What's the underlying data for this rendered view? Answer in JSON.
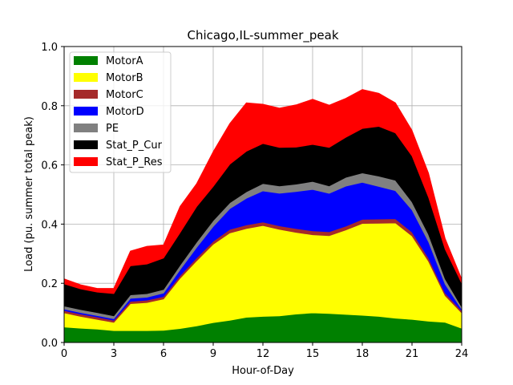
{
  "chart_data": {
    "type": "area",
    "stacked": true,
    "title": "Chicago,IL-summer_peak",
    "xlabel": "Hour-of-Day",
    "ylabel": "Load (pu. summer total peak)",
    "xlim": [
      0,
      24
    ],
    "ylim": [
      0,
      1.0
    ],
    "xticks": [
      0,
      3,
      6,
      9,
      12,
      15,
      18,
      21,
      24
    ],
    "yticks": [
      0.0,
      0.2,
      0.4,
      0.6,
      0.8,
      1.0
    ],
    "xtick_labels": [
      "0",
      "3",
      "6",
      "9",
      "12",
      "15",
      "18",
      "21",
      "24"
    ],
    "ytick_labels": [
      "0.0",
      "0.2",
      "0.4",
      "0.6",
      "0.8",
      "1.0"
    ],
    "grid": true,
    "legend_position": "upper-left",
    "x": [
      0,
      1,
      2,
      3,
      4,
      5,
      6,
      7,
      8,
      9,
      10,
      11,
      12,
      13,
      14,
      15,
      16,
      17,
      18,
      19,
      20,
      21,
      22,
      23,
      24
    ],
    "series": [
      {
        "name": "MotorA",
        "color": "#008000",
        "values": [
          0.052,
          0.048,
          0.045,
          0.04,
          0.04,
          0.04,
          0.041,
          0.047,
          0.056,
          0.067,
          0.075,
          0.085,
          0.088,
          0.09,
          0.096,
          0.1,
          0.098,
          0.095,
          0.092,
          0.088,
          0.082,
          0.078,
          0.072,
          0.068,
          0.048
        ]
      },
      {
        "name": "MotorB",
        "color": "#ffff00",
        "values": [
          0.048,
          0.04,
          0.033,
          0.028,
          0.091,
          0.095,
          0.106,
          0.17,
          0.22,
          0.265,
          0.295,
          0.3,
          0.307,
          0.292,
          0.276,
          0.264,
          0.263,
          0.285,
          0.31,
          0.315,
          0.322,
          0.282,
          0.202,
          0.09,
          0.052
        ]
      },
      {
        "name": "MotorC",
        "color": "#a52a2a",
        "values": [
          0.008,
          0.008,
          0.008,
          0.007,
          0.008,
          0.008,
          0.008,
          0.009,
          0.01,
          0.01,
          0.012,
          0.012,
          0.012,
          0.012,
          0.013,
          0.013,
          0.013,
          0.013,
          0.014,
          0.014,
          0.014,
          0.013,
          0.011,
          0.009,
          0.007
        ]
      },
      {
        "name": "MotorD",
        "color": "#0000ff",
        "values": [
          0.005,
          0.005,
          0.005,
          0.005,
          0.01,
          0.01,
          0.012,
          0.02,
          0.035,
          0.05,
          0.07,
          0.09,
          0.105,
          0.11,
          0.125,
          0.14,
          0.13,
          0.135,
          0.125,
          0.11,
          0.095,
          0.075,
          0.055,
          0.03,
          0.005
        ]
      },
      {
        "name": "PE",
        "color": "#808080",
        "values": [
          0.01,
          0.01,
          0.01,
          0.01,
          0.012,
          0.012,
          0.012,
          0.015,
          0.018,
          0.02,
          0.02,
          0.022,
          0.025,
          0.025,
          0.025,
          0.027,
          0.025,
          0.03,
          0.032,
          0.035,
          0.035,
          0.027,
          0.025,
          0.018,
          0.008
        ]
      },
      {
        "name": "Stat_P_Cur",
        "color": "#000000",
        "values": [
          0.075,
          0.07,
          0.069,
          0.075,
          0.098,
          0.1,
          0.106,
          0.11,
          0.12,
          0.115,
          0.13,
          0.137,
          0.135,
          0.13,
          0.125,
          0.125,
          0.13,
          0.135,
          0.15,
          0.168,
          0.16,
          0.155,
          0.125,
          0.1,
          0.08
        ]
      },
      {
        "name": "Stat_P_Res",
        "color": "#ff0000",
        "values": [
          0.017,
          0.014,
          0.013,
          0.018,
          0.05,
          0.06,
          0.045,
          0.089,
          0.078,
          0.118,
          0.138,
          0.164,
          0.133,
          0.133,
          0.143,
          0.153,
          0.143,
          0.132,
          0.132,
          0.112,
          0.102,
          0.087,
          0.082,
          0.037,
          0.015
        ]
      }
    ]
  }
}
